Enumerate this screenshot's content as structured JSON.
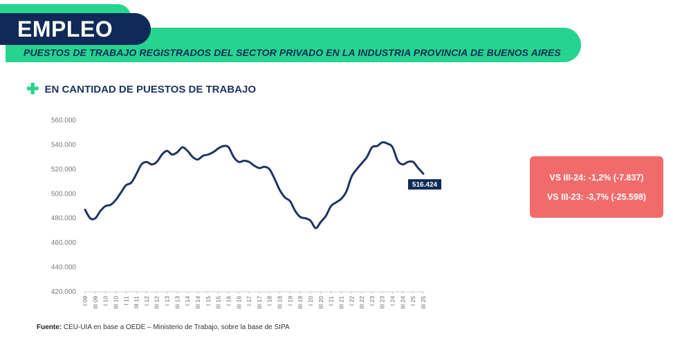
{
  "header": {
    "title": "EMPLEO",
    "subtitle": "PUESTOS DE TRABAJO REGISTRADOS DEL SECTOR PRIVADO EN LA INDUSTRIA PROVINCIA DE BUENOS AIRES"
  },
  "section": {
    "label": "EN CANTIDAD DE PUESTOS DE TRABAJO",
    "icon": "plus-icon"
  },
  "callout": {
    "line1": "VS III-24: -1,2% (-7.837)",
    "line2": "VS III-23: -3,7% (-25.598)",
    "color": "#f26b6b"
  },
  "source": {
    "label": "Fuente:",
    "text": "CEU-UIA en base a OEDE – Ministerio de Trabajo, sobre la base de SIPA"
  },
  "colors": {
    "accent": "#26d48f",
    "navy": "#0f2a57",
    "line": "#1d3461"
  },
  "chart_data": {
    "type": "line",
    "title": "",
    "ylim": [
      420000,
      560000
    ],
    "yticks": [
      {
        "value": 420000,
        "label": "420.000"
      },
      {
        "value": 440000,
        "label": "440.000"
      },
      {
        "value": 460000,
        "label": "460.000"
      },
      {
        "value": 480000,
        "label": "480.000"
      },
      {
        "value": 500000,
        "label": "500.000"
      },
      {
        "value": 520000,
        "label": "520.000"
      },
      {
        "value": 540000,
        "label": "540.000"
      },
      {
        "value": 560000,
        "label": "560.000"
      }
    ],
    "xticks": [
      "I 09",
      "III 09",
      "I 10",
      "III 10",
      "I 11",
      "III 11",
      "I 12",
      "III 12",
      "I 13",
      "III 13",
      "I 14",
      "III 14",
      "I 15",
      "III 15",
      "I 16",
      "III 16",
      "I 17",
      "III 17",
      "I 18",
      "III 18",
      "I 19",
      "III 19",
      "I 20",
      "III 20",
      "I 21",
      "III 21",
      "I 22",
      "III 22",
      "I 23",
      "III 23",
      "I 24",
      "III 24",
      "I 25",
      "III 25"
    ],
    "series": [
      {
        "values": [
          487000,
          480000,
          480000,
          486000,
          490000,
          491000,
          495000,
          501000,
          507000,
          509000,
          516000,
          524000,
          526000,
          524000,
          526000,
          532000,
          535000,
          532000,
          534000,
          538000,
          535000,
          530000,
          528000,
          531000,
          532000,
          534000,
          537000,
          539000,
          538000,
          530000,
          526000,
          527000,
          526000,
          523000,
          521000,
          522000,
          520000,
          512000,
          503000,
          497000,
          494000,
          486000,
          481000,
          480000,
          478000,
          472000,
          477000,
          482000,
          490000,
          493000,
          496000,
          502000,
          514000,
          520000,
          525000,
          530000,
          538000,
          539000,
          542000,
          541000,
          538000,
          527000,
          524000,
          526000,
          526000,
          521000,
          516424
        ]
      }
    ],
    "last_label": "516.424"
  }
}
